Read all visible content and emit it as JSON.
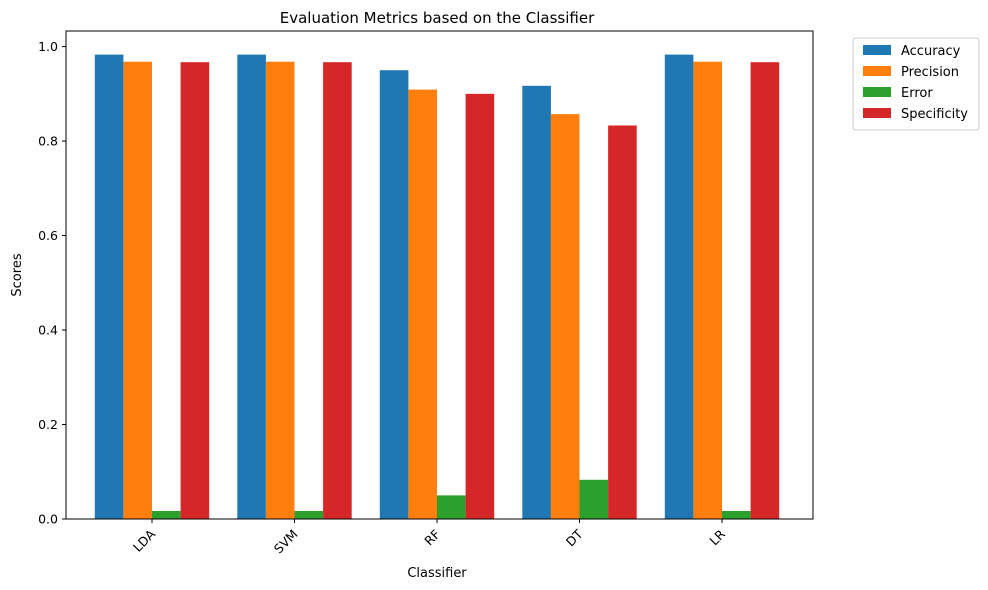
{
  "chart_data": {
    "type": "bar",
    "title": "Evaluation Metrics based on the Classifier",
    "xlabel": "Classifier",
    "ylabel": "Scores",
    "categories": [
      "LDA",
      "SVM",
      "RF",
      "DT",
      "LR"
    ],
    "series": [
      {
        "name": "Accuracy",
        "color": "#1f77b4",
        "values": [
          0.983,
          0.983,
          0.95,
          0.917,
          0.983
        ]
      },
      {
        "name": "Precision",
        "color": "#ff7f0e",
        "values": [
          0.968,
          0.968,
          0.909,
          0.857,
          0.968
        ]
      },
      {
        "name": "Error",
        "color": "#2ca02c",
        "values": [
          0.017,
          0.017,
          0.05,
          0.083,
          0.017
        ]
      },
      {
        "name": "Specificity",
        "color": "#d62728",
        "values": [
          0.967,
          0.967,
          0.9,
          0.833,
          0.967
        ]
      }
    ],
    "ylim": [
      0,
      1.033
    ],
    "yticks": [
      0.0,
      0.2,
      0.4,
      0.6,
      0.8,
      1.0
    ],
    "ytick_labels": [
      "0.0",
      "0.2",
      "0.4",
      "0.6",
      "0.8",
      "1.0"
    ],
    "xtick_rotation_deg": 45,
    "grid": false,
    "legend_position": "outside top-right"
  }
}
